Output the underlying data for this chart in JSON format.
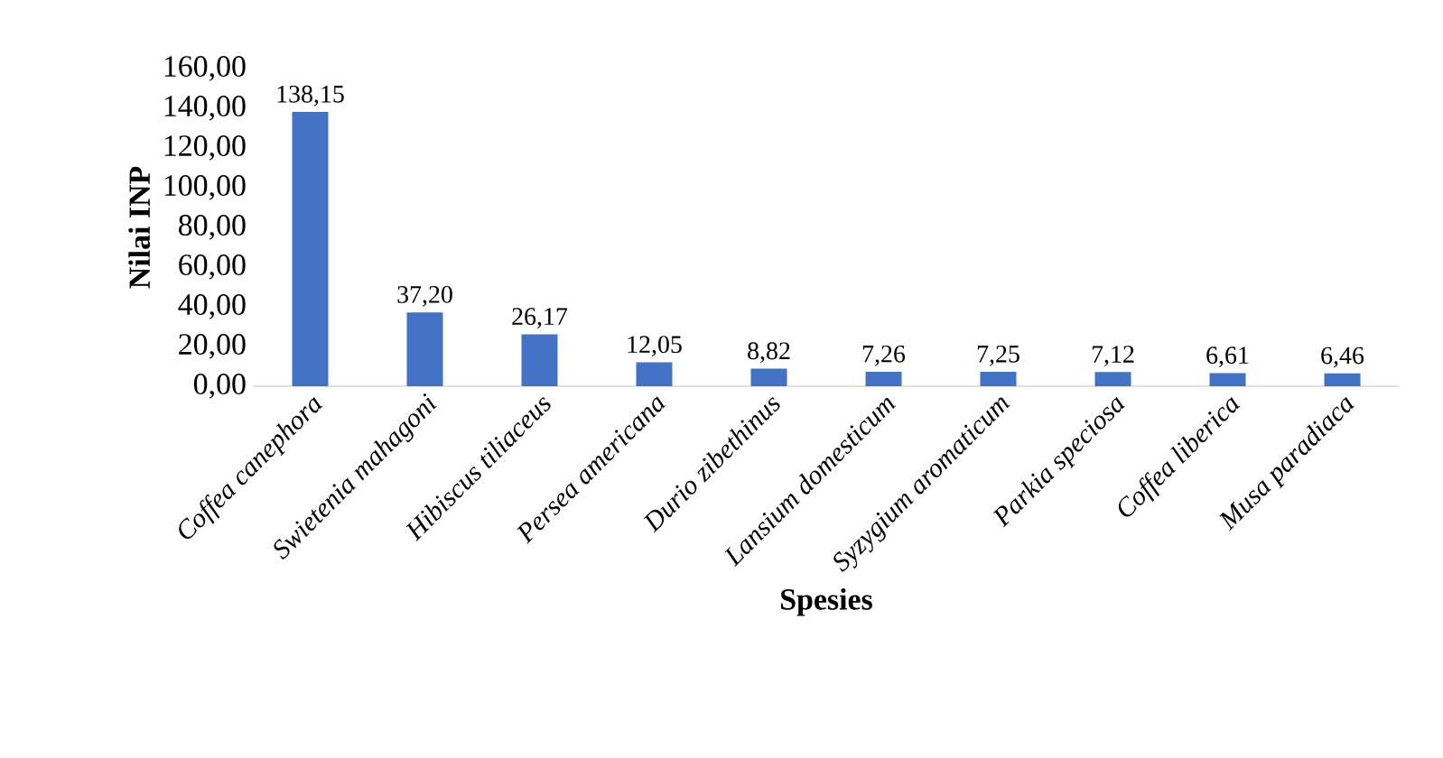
{
  "chart_data": {
    "type": "bar",
    "xlabel": "Spesies",
    "ylabel": "Nilai INP",
    "categories": [
      "Coffea canephora",
      "Swietenia mahagoni",
      "Hibiscus tiliaceus",
      "Persea americana",
      "Durio zibethinus",
      "Lansium domesticum",
      "Syzygium aromaticum",
      "Parkia speciosa",
      "Coffea liberica",
      "Musa paradiaca"
    ],
    "values": [
      138.15,
      37.2,
      26.17,
      12.05,
      8.82,
      7.26,
      7.25,
      7.12,
      6.61,
      6.46
    ],
    "value_labels": [
      "138,15",
      "37,20",
      "26,17",
      "12,05",
      "8,82",
      "7,26",
      "7,25",
      "7,12",
      "6,61",
      "6,46"
    ],
    "color": "#4472c4",
    "ylim": [
      0,
      160
    ],
    "yticks": [
      {
        "value": 0,
        "label": "0,00"
      },
      {
        "value": 20,
        "label": "20,00"
      },
      {
        "value": 40,
        "label": "40,00"
      },
      {
        "value": 60,
        "label": "60,00"
      },
      {
        "value": 80,
        "label": "80,00"
      },
      {
        "value": 100,
        "label": "100,00"
      },
      {
        "value": 120,
        "label": "120,00"
      },
      {
        "value": 140,
        "label": "140,00"
      },
      {
        "value": 160,
        "label": "160,00"
      }
    ]
  }
}
